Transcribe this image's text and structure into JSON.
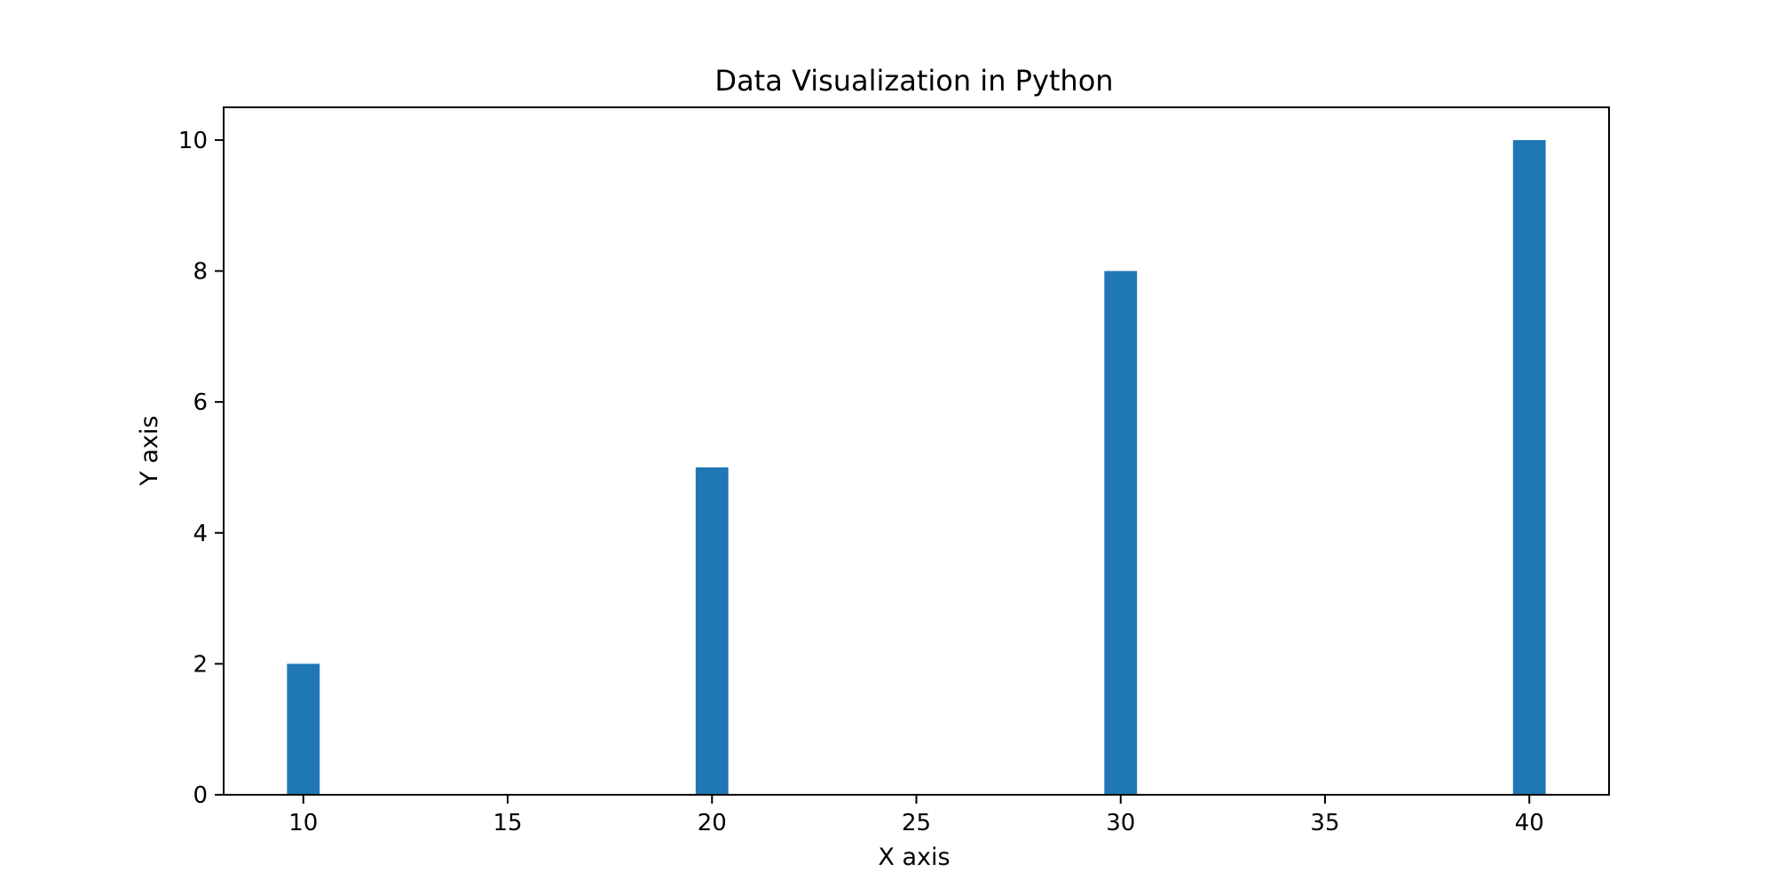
{
  "chart_data": {
    "type": "bar",
    "title": "Data Visualization in Python",
    "xlabel": "X axis",
    "ylabel": "Y axis",
    "x": [
      10,
      20,
      30,
      40
    ],
    "values": [
      2,
      5,
      8,
      10
    ],
    "bar_width": 0.8,
    "xlim": [
      8.05,
      41.95
    ],
    "ylim": [
      0,
      10.5
    ],
    "xticks": [
      10,
      15,
      20,
      25,
      30,
      35,
      40
    ],
    "yticks": [
      0,
      2,
      4,
      6,
      8,
      10
    ],
    "grid": false,
    "legend": null,
    "colors": {
      "bar": "#1f77b4",
      "axes": "#000000",
      "background": "#ffffff"
    }
  }
}
